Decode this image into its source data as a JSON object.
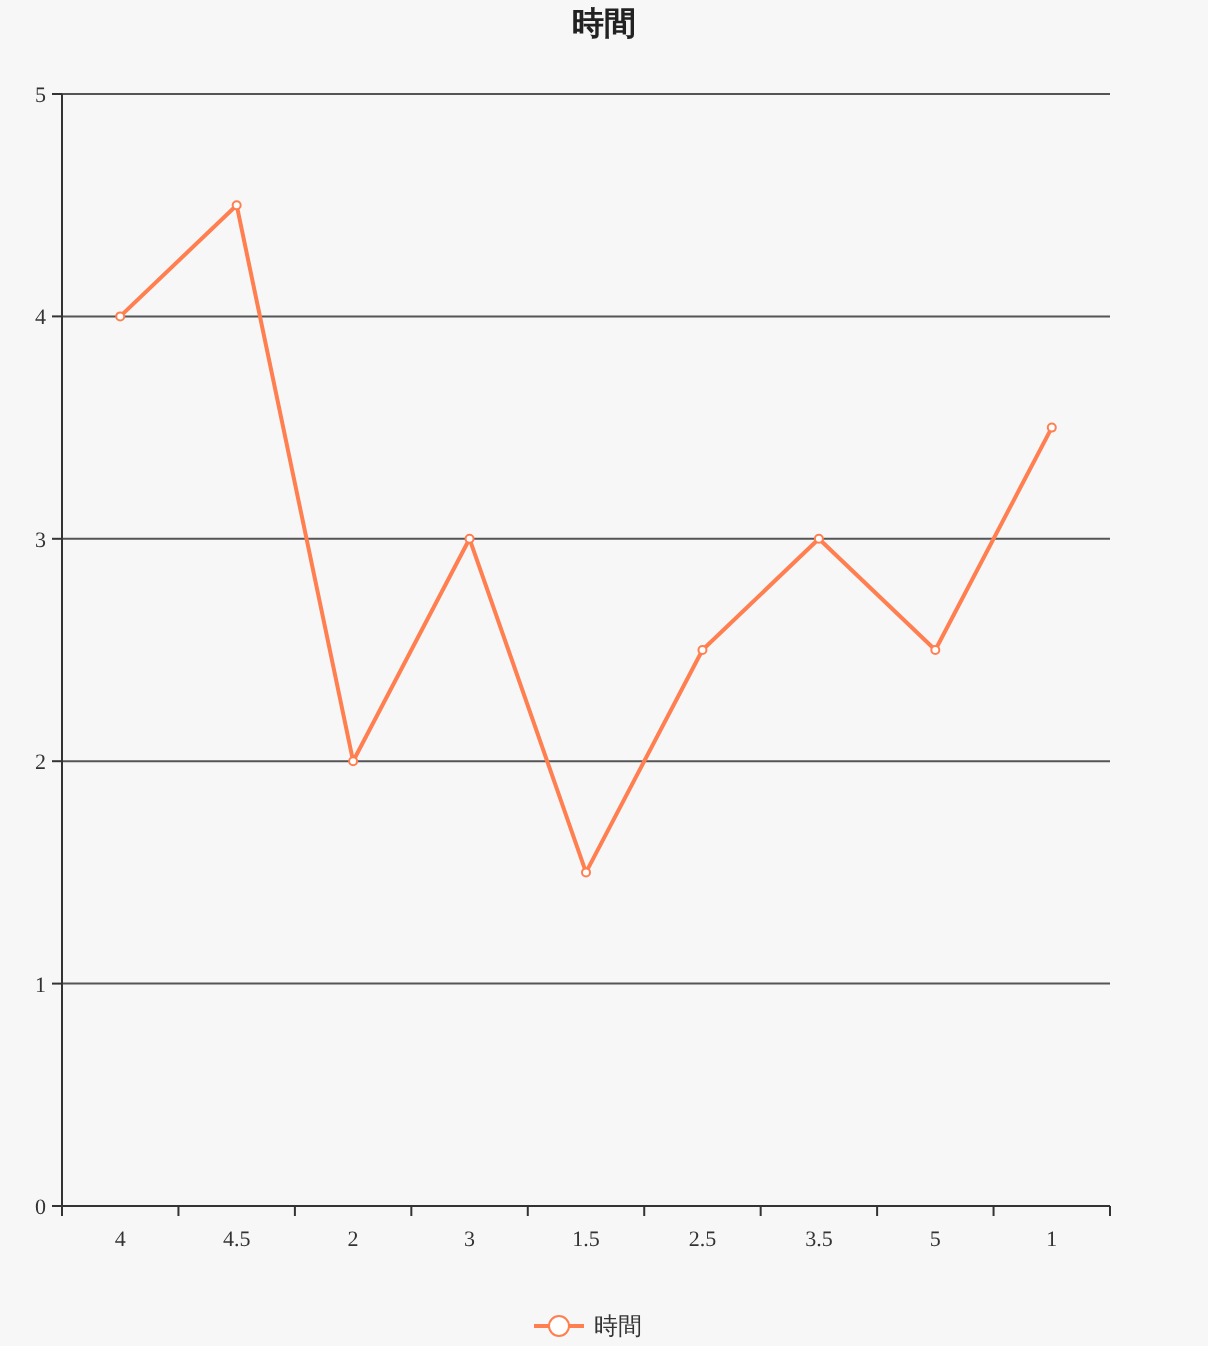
{
  "chart_data": {
    "type": "line",
    "title": "時間",
    "categories": [
      "4",
      "4.5",
      "2",
      "3",
      "1.5",
      "2.5",
      "3.5",
      "5",
      "1"
    ],
    "series": [
      {
        "name": "時間",
        "color": "#ff7f50",
        "values": [
          4,
          4.5,
          2,
          3,
          1.5,
          2.5,
          3,
          2.5,
          3.5
        ]
      }
    ],
    "ylim": [
      0,
      5
    ],
    "yticks": [
      0,
      1,
      2,
      3,
      4,
      5
    ],
    "grid": "y",
    "legend": "bottom",
    "marker": "circle"
  }
}
